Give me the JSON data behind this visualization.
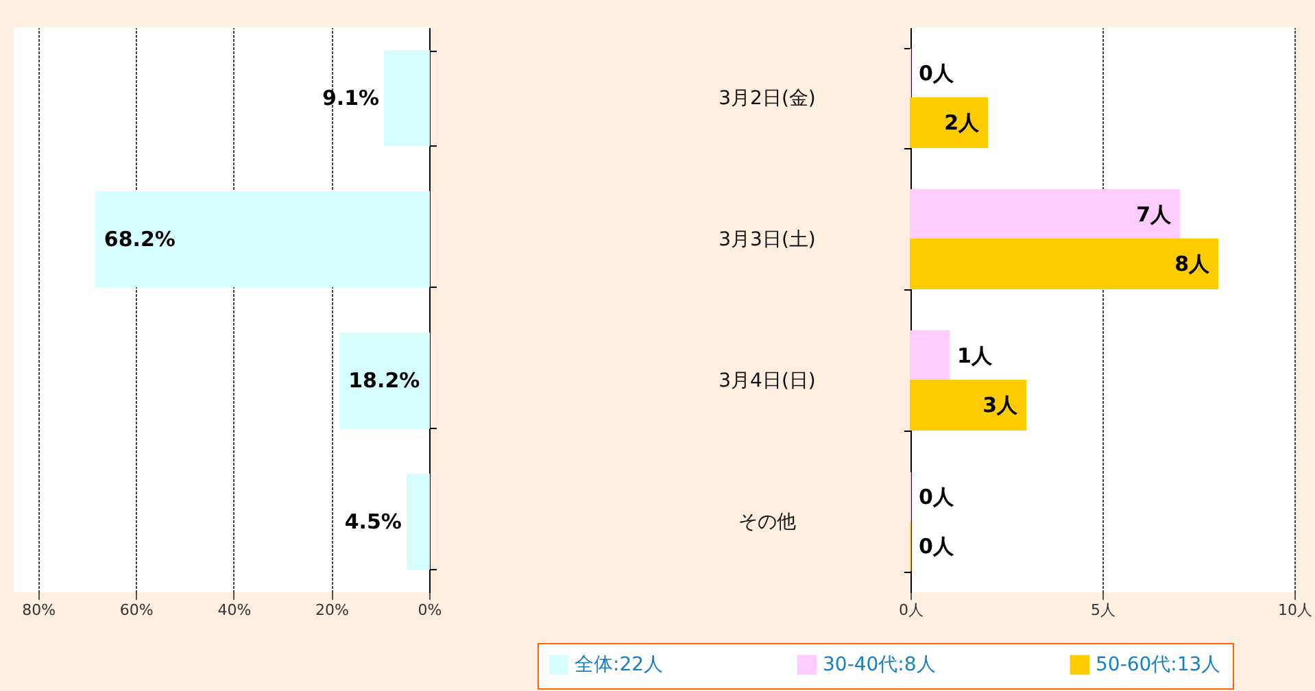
{
  "chart_data": [
    {
      "type": "bar",
      "orientation": "horizontal",
      "categories": [
        null,
        null,
        null,
        null
      ],
      "series": [
        {
          "name": "全体:22人",
          "color": "#d6fefe",
          "values": [
            9.1,
            68.2,
            18.2,
            4.5
          ],
          "value_labels": [
            "9.1%",
            "68.2%",
            "18.2%",
            "4.5%"
          ]
        }
      ],
      "xlim": [
        85,
        0
      ],
      "xticks": [
        {
          "value": 80,
          "label": "80%"
        },
        {
          "value": 60,
          "label": "60%"
        },
        {
          "value": 40,
          "label": "40%"
        },
        {
          "value": 20,
          "label": "20%"
        },
        {
          "value": 0,
          "label": "0%"
        }
      ],
      "grid": "x",
      "tick_labels": "x",
      "legend": "bottom right"
    },
    {
      "type": "bar",
      "orientation": "horizontal",
      "categories": [
        "3月2日(金)",
        "3月3日(土)",
        "3月4日(日)",
        "その他"
      ],
      "series": [
        {
          "name": "30-40代:8人",
          "color": "#ffccff",
          "values": [
            0,
            7,
            1,
            0
          ],
          "value_labels": [
            "0人",
            "7人",
            "1人",
            "0人"
          ]
        },
        {
          "name": "50-60代:13人",
          "color": "#ffcc00",
          "values": [
            2,
            8,
            3,
            0
          ],
          "value_labels": [
            "2人",
            "8人",
            "3人",
            "0人"
          ]
        }
      ],
      "xlim": [
        0,
        10
      ],
      "xticks": [
        {
          "value": 0,
          "label": "0人"
        },
        {
          "value": 5,
          "label": "5人"
        },
        {
          "value": 10,
          "label": "10人"
        }
      ],
      "grid": "x",
      "legend": "bottom"
    }
  ]
}
